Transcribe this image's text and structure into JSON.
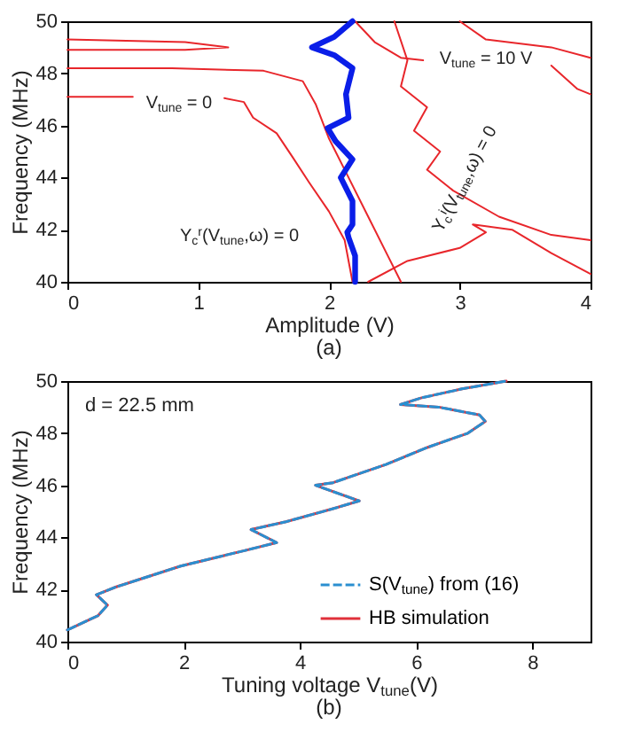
{
  "chart_data": [
    {
      "type": "line",
      "title": "(a)",
      "xlabel": "Amplitude (V)",
      "ylabel": "Frequency (MHz)",
      "xlim": [
        0,
        4
      ],
      "xticks": [
        0,
        1,
        2,
        3,
        4
      ],
      "ylim": [
        40,
        50
      ],
      "yticks": [
        40,
        42,
        44,
        46,
        48,
        50
      ],
      "grid": false,
      "legend": false,
      "annotations": [
        "V$_{tune}$ = 0",
        "V$_{tune}$ = 10 V",
        "Y$_{c}$$^{r}$(V$_{tune}$,ω) = 0",
        "Y$_{c}$$^{i}$(V$_{tune}$,ω) = 0"
      ],
      "series": [
        {
          "color": "#e8262b",
          "x": [
            0,
            0.5
          ],
          "values": [
            47.1,
            47.1
          ]
        },
        {
          "color": "#e8262b",
          "x": [
            1.2,
            1.35,
            1.42,
            1.6,
            1.72,
            1.85,
            2.0,
            2.12,
            2.18
          ],
          "values": [
            47.05,
            46.9,
            46.3,
            45.7,
            44.8,
            43.8,
            42.7,
            41.6,
            40.0
          ]
        },
        {
          "color": "#e8262b",
          "x": [
            0,
            0.9,
            1.23,
            0.9,
            0
          ],
          "values": [
            49.3,
            49.2,
            49.0,
            48.9,
            48.9
          ]
        },
        {
          "color": "#e8262b",
          "x": [
            0,
            0.8,
            1.5,
            1.8,
            1.9,
            2.0,
            2.15,
            2.3,
            2.45,
            2.55
          ],
          "values": [
            48.2,
            48.2,
            48.1,
            47.7,
            46.8,
            45.5,
            44.0,
            42.5,
            41.0,
            40.0
          ]
        },
        {
          "color": "#e8262b",
          "x": [
            2.2,
            2.35,
            2.55,
            2.72
          ],
          "values": [
            50.0,
            49.2,
            48.6,
            48.5
          ]
        },
        {
          "color": "#e8262b",
          "x": [
            3.7,
            3.9,
            4.0
          ],
          "values": [
            48.3,
            47.4,
            47.2
          ]
        },
        {
          "color": "#e8262b",
          "x": [
            2.5,
            2.6,
            2.55,
            2.75,
            2.65,
            2.85,
            2.75,
            2.95,
            3.3,
            3.7,
            4.0
          ],
          "values": [
            50.0,
            48.5,
            47.5,
            46.7,
            45.8,
            45.0,
            44.3,
            43.5,
            42.5,
            41.8,
            41.6
          ]
        },
        {
          "color": "#e8262b",
          "x": [
            3.0,
            3.2,
            3.7,
            4.0
          ],
          "values": [
            50.0,
            49.3,
            49.0,
            48.6
          ]
        },
        {
          "color": "#e8262b",
          "x": [
            2.3,
            2.6,
            3.0,
            3.2,
            3.1,
            3.4,
            3.7,
            4.0
          ],
          "values": [
            40.0,
            40.8,
            41.3,
            41.9,
            42.2,
            42.0,
            41.1,
            40.3
          ]
        },
        {
          "color": "#0a1ee8",
          "x": [
            2.2,
            2.2,
            2.15,
            2.14,
            2.18,
            2.18,
            2.09,
            2.18,
            2.05,
            1.99,
            2.15,
            2.13,
            2.18,
            2.04,
            1.87,
            2.04,
            2.18
          ],
          "values": [
            40.0,
            41.0,
            41.7,
            41.9,
            42.2,
            43.1,
            44.0,
            44.7,
            45.4,
            45.9,
            46.3,
            47.2,
            48.2,
            48.7,
            49.0,
            49.4,
            50.0
          ]
        }
      ]
    },
    {
      "type": "line",
      "title": "(b)",
      "xlabel": "Tuning voltage V$_{tune}$(V)",
      "ylabel": "Frequency (MHz)",
      "xlim": [
        0,
        9
      ],
      "xticks": [
        0,
        2,
        4,
        6,
        8
      ],
      "ylim": [
        40,
        50
      ],
      "yticks": [
        40,
        42,
        44,
        46,
        48,
        50
      ],
      "grid": false,
      "legend": "bottom right",
      "annotations": [
        "d = 22.5 mm"
      ],
      "series": [
        {
          "name": "S(V$_{tune}$) from (16)",
          "color": "#2a8fd0",
          "line_style": "dashed",
          "x": [
            0,
            0.53,
            0.69,
            0.5,
            0.84,
            1.95,
            3.06,
            3.6,
            3.16,
            3.76,
            4.57,
            5.02,
            4.27,
            4.57,
            5.48,
            6.19,
            6.89,
            7.19,
            7.09,
            6.39,
            5.73,
            6.08,
            6.79,
            7.55
          ],
          "values": [
            40.45,
            41.0,
            41.4,
            41.8,
            42.1,
            42.9,
            43.5,
            43.8,
            44.3,
            44.6,
            45.1,
            45.4,
            46.0,
            46.1,
            46.8,
            47.45,
            48.0,
            48.45,
            48.7,
            49.0,
            49.1,
            49.35,
            49.7,
            50.0
          ]
        },
        {
          "name": "HB simulation",
          "color": "#e0303a",
          "line_style": "solid",
          "x": [
            0,
            0.53,
            0.69,
            0.5,
            0.84,
            1.95,
            3.06,
            3.6,
            3.16,
            3.76,
            4.57,
            5.02,
            4.27,
            4.57,
            5.48,
            6.19,
            6.89,
            7.19,
            7.09,
            6.39,
            5.73,
            6.08,
            6.79,
            7.55
          ],
          "values": [
            40.45,
            41.0,
            41.4,
            41.8,
            42.1,
            42.9,
            43.5,
            43.8,
            44.3,
            44.6,
            45.1,
            45.4,
            46.0,
            46.1,
            46.8,
            47.45,
            48.0,
            48.45,
            48.7,
            49.0,
            49.1,
            49.35,
            49.7,
            50.0
          ]
        }
      ]
    }
  ]
}
